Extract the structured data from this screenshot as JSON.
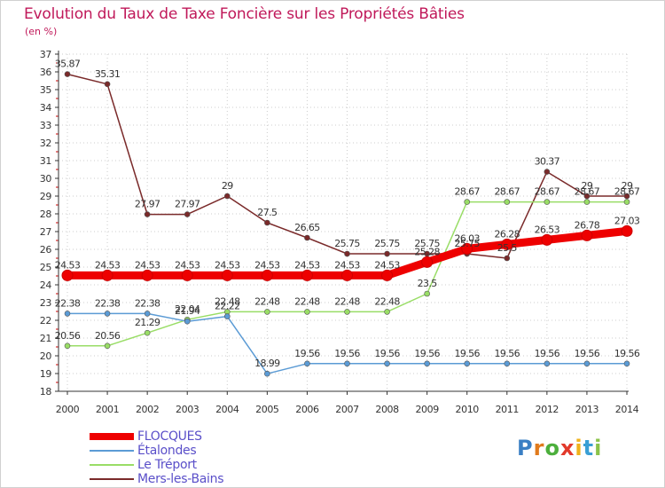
{
  "header": {
    "title": "Evolution du Taux de Taxe Foncière sur les Propriétés Bâties",
    "subtitle": "(en %)"
  },
  "colors": {
    "title": "#c0195a",
    "grid": "#cccccc",
    "axis": "#333333",
    "tick_marks": "#cc0000"
  },
  "logo": {
    "letters": [
      "P",
      "r",
      "o",
      "x",
      "i",
      "t",
      "i"
    ],
    "colors": [
      "#3a7fc4",
      "#e07a1c",
      "#4caf3c",
      "#e2392b",
      "#f0b21a",
      "#3a9fd4",
      "#8bc34a"
    ]
  },
  "chart_data": {
    "type": "line",
    "title": "Evolution du Taux de Taxe Foncière sur les Propriétés Bâties",
    "ylabel": "(en %)",
    "xlabel": "",
    "x": [
      "2000",
      "2001",
      "2002",
      "2003",
      "2004",
      "2005",
      "2006",
      "2007",
      "2008",
      "2009",
      "2010",
      "2011",
      "2012",
      "2013",
      "2014"
    ],
    "ylim": [
      18,
      37
    ],
    "yticks": [
      "18",
      "19",
      "20",
      "21",
      "22",
      "23",
      "24",
      "25",
      "26",
      "27",
      "28",
      "29",
      "30",
      "31",
      "32",
      "33",
      "34",
      "35",
      "36",
      "37"
    ],
    "grid": "horizontal",
    "legend_position": "bottom-left",
    "series": [
      {
        "name": "FLOCQUES",
        "color": "#ee0000",
        "values": [
          24.53,
          24.53,
          24.53,
          24.53,
          24.53,
          24.53,
          24.53,
          24.53,
          24.53,
          25.28,
          26.03,
          26.28,
          26.53,
          26.78,
          27.03
        ],
        "labels": [
          "24.53",
          "24.53",
          "24.53",
          "24.53",
          "24.53",
          "24.53",
          "24.53",
          "24.53",
          "24.53",
          "25.28",
          "26.03",
          "26.28",
          "26.53",
          "26.78",
          "27.03"
        ],
        "label_shown": [
          true,
          true,
          true,
          true,
          true,
          true,
          true,
          true,
          true,
          true,
          true,
          true,
          true,
          true,
          true
        ]
      },
      {
        "name": "Étalondes",
        "color": "#5b9bd5",
        "values": [
          22.38,
          22.38,
          22.38,
          21.94,
          22.22,
          18.99,
          19.56,
          19.56,
          19.56,
          19.56,
          19.56,
          19.56,
          19.56,
          19.56,
          19.56
        ],
        "labels": [
          "22.38",
          "22.38",
          "22.38",
          "21.94",
          "22.22",
          "18.99",
          "19.56",
          "19.56",
          "19.56",
          "19.56",
          "19.56",
          "19.56",
          "19.56",
          "19.56",
          "19.56"
        ],
        "label_shown": [
          true,
          true,
          true,
          true,
          true,
          true,
          true,
          true,
          true,
          true,
          true,
          true,
          true,
          true,
          true
        ]
      },
      {
        "name": "Le Tréport",
        "color": "#99dd66",
        "values": [
          20.56,
          20.56,
          21.29,
          22.04,
          22.48,
          22.48,
          22.48,
          22.48,
          22.48,
          23.5,
          28.67,
          28.67,
          28.67,
          28.67,
          28.67
        ],
        "labels": [
          "20.56",
          "20.56",
          "21.29",
          "22.04",
          "22.48",
          "22.48",
          "22.48",
          "22.48",
          "22.48",
          "23.5",
          "28.67",
          "28.67",
          "28.67",
          "28.67",
          "28.67"
        ],
        "label_shown": [
          true,
          true,
          true,
          true,
          true,
          true,
          true,
          true,
          true,
          true,
          true,
          true,
          true,
          true,
          true
        ]
      },
      {
        "name": "Mers-les-Bains",
        "color": "#7a2a2a",
        "values": [
          35.87,
          35.31,
          27.97,
          27.97,
          29,
          27.5,
          26.65,
          25.75,
          25.75,
          25.75,
          25.75,
          25.5,
          30.37,
          29,
          29
        ],
        "labels": [
          "35.87",
          "35.31",
          "27.97",
          "27.97",
          "29",
          "27.5",
          "26.65",
          "25.75",
          "25.75",
          "25.75",
          "25.75",
          "25.5",
          "30.37",
          "29",
          "29"
        ],
        "label_shown": [
          true,
          true,
          true,
          true,
          true,
          true,
          true,
          true,
          true,
          true,
          true,
          true,
          true,
          true,
          true
        ]
      }
    ]
  }
}
